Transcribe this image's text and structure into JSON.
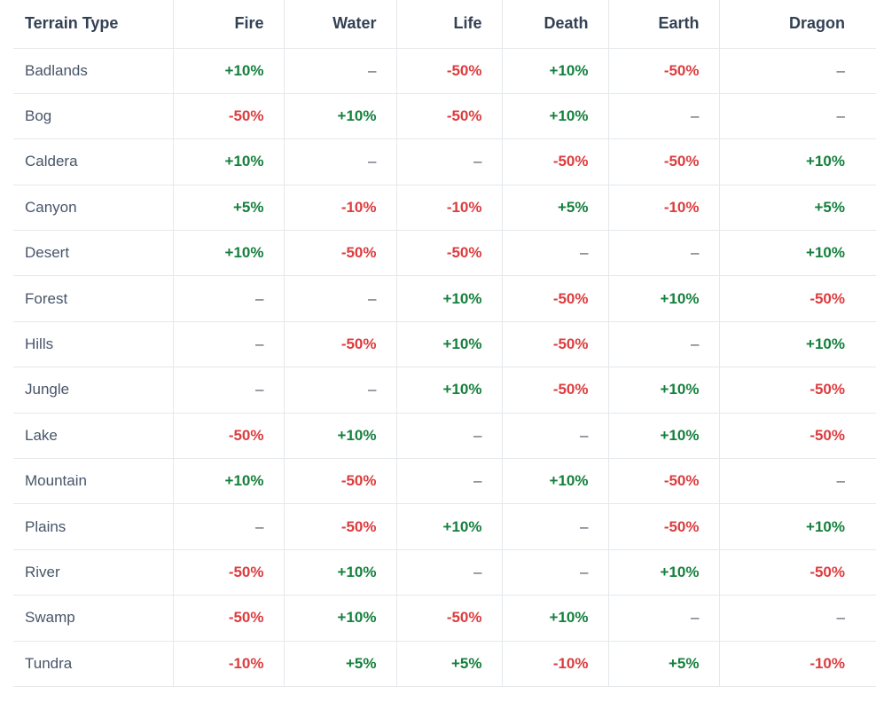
{
  "table": {
    "columns": [
      "Terrain Type",
      "Fire",
      "Water",
      "Life",
      "Death",
      "Earth",
      "Dragon"
    ],
    "rows": [
      {
        "terrain": "Badlands",
        "values": [
          "+10%",
          "–",
          "-50%",
          "+10%",
          "-50%",
          "–"
        ]
      },
      {
        "terrain": "Bog",
        "values": [
          "-50%",
          "+10%",
          "-50%",
          "+10%",
          "–",
          "–"
        ]
      },
      {
        "terrain": "Caldera",
        "values": [
          "+10%",
          "–",
          "–",
          "-50%",
          "-50%",
          "+10%"
        ]
      },
      {
        "terrain": "Canyon",
        "values": [
          "+5%",
          "-10%",
          "-10%",
          "+5%",
          "-10%",
          "+5%"
        ]
      },
      {
        "terrain": "Desert",
        "values": [
          "+10%",
          "-50%",
          "-50%",
          "–",
          "–",
          "+10%"
        ]
      },
      {
        "terrain": "Forest",
        "values": [
          "–",
          "–",
          "+10%",
          "-50%",
          "+10%",
          "-50%"
        ]
      },
      {
        "terrain": "Hills",
        "values": [
          "–",
          "-50%",
          "+10%",
          "-50%",
          "–",
          "+10%"
        ]
      },
      {
        "terrain": "Jungle",
        "values": [
          "–",
          "–",
          "+10%",
          "-50%",
          "+10%",
          "-50%"
        ]
      },
      {
        "terrain": "Lake",
        "values": [
          "-50%",
          "+10%",
          "–",
          "–",
          "+10%",
          "-50%"
        ]
      },
      {
        "terrain": "Mountain",
        "values": [
          "+10%",
          "-50%",
          "–",
          "+10%",
          "-50%",
          "–"
        ]
      },
      {
        "terrain": "Plains",
        "values": [
          "–",
          "-50%",
          "+10%",
          "–",
          "-50%",
          "+10%"
        ]
      },
      {
        "terrain": "River",
        "values": [
          "-50%",
          "+10%",
          "–",
          "–",
          "+10%",
          "-50%"
        ]
      },
      {
        "terrain": "Swamp",
        "values": [
          "-50%",
          "+10%",
          "-50%",
          "+10%",
          "–",
          "–"
        ]
      },
      {
        "terrain": "Tundra",
        "values": [
          "-10%",
          "+5%",
          "+5%",
          "-10%",
          "+5%",
          "-10%"
        ]
      }
    ],
    "colors": {
      "positive": "#15803d",
      "negative": "#dd3c3e",
      "neutral": "#4b5563",
      "header_text": "#334155",
      "label_text": "#475569",
      "border": "#e5e8eb",
      "background": "#ffffff"
    }
  }
}
